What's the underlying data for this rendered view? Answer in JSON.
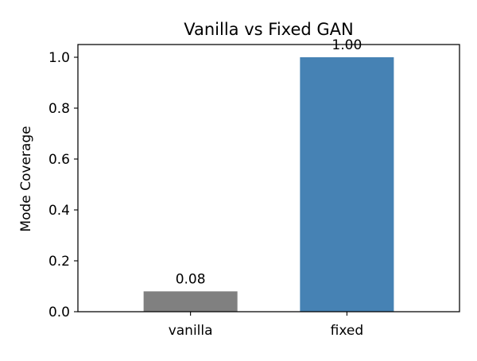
{
  "chart_data": {
    "type": "bar",
    "title": "Vanilla vs Fixed GAN",
    "xlabel": "",
    "ylabel": "Mode Coverage",
    "categories": [
      "vanilla",
      "fixed"
    ],
    "values": [
      0.08,
      1.0
    ],
    "value_labels": [
      "0.08",
      "1.00"
    ],
    "colors": [
      "#808080",
      "#4682b4"
    ],
    "ylim": [
      0,
      1.05
    ],
    "yticks": [
      0.0,
      0.2,
      0.4,
      0.6,
      0.8,
      1.0
    ],
    "ytick_labels": [
      "0.0",
      "0.2",
      "0.4",
      "0.6",
      "0.8",
      "1.0"
    ],
    "grid": false,
    "legend": "none"
  }
}
